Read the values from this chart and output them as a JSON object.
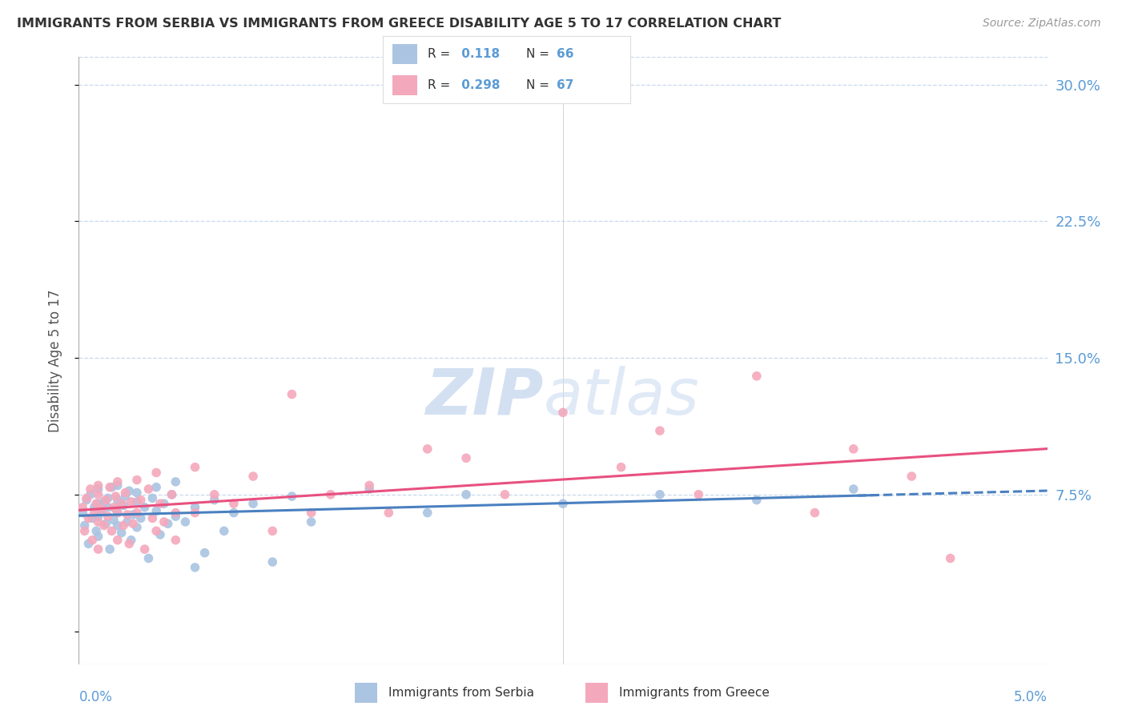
{
  "title": "IMMIGRANTS FROM SERBIA VS IMMIGRANTS FROM GREECE DISABILITY AGE 5 TO 17 CORRELATION CHART",
  "source": "Source: ZipAtlas.com",
  "ylabel": "Disability Age 5 to 17",
  "yticks": [
    0.0,
    0.075,
    0.15,
    0.225,
    0.3
  ],
  "ytick_labels": [
    "",
    "7.5%",
    "15.0%",
    "22.5%",
    "30.0%"
  ],
  "xlim": [
    0.0,
    0.05
  ],
  "ylim": [
    -0.018,
    0.315
  ],
  "serbia_R": 0.118,
  "serbia_N": 66,
  "greece_R": 0.298,
  "greece_N": 67,
  "serbia_color": "#aac4e2",
  "greece_color": "#f4a8bc",
  "serbia_line_color": "#4a80c0",
  "greece_line_color": "#e85080",
  "axis_label_color": "#5b9bd5",
  "watermark_color": "#d0dff0",
  "background_color": "#ffffff",
  "serbia_x": [
    0.0002,
    0.0003,
    0.0004,
    0.0005,
    0.0006,
    0.0007,
    0.0008,
    0.0009,
    0.001,
    0.001,
    0.001,
    0.001,
    0.0012,
    0.0013,
    0.0014,
    0.0015,
    0.0015,
    0.0016,
    0.0017,
    0.0018,
    0.0019,
    0.002,
    0.002,
    0.002,
    0.002,
    0.0022,
    0.0023,
    0.0024,
    0.0025,
    0.0026,
    0.0027,
    0.0028,
    0.003,
    0.003,
    0.003,
    0.0032,
    0.0034,
    0.0036,
    0.0038,
    0.004,
    0.004,
    0.0042,
    0.0044,
    0.0046,
    0.0048,
    0.005,
    0.005,
    0.0055,
    0.006,
    0.006,
    0.0065,
    0.007,
    0.0075,
    0.008,
    0.009,
    0.01,
    0.011,
    0.012,
    0.015,
    0.018,
    0.02,
    0.025,
    0.03,
    0.035,
    0.04
  ],
  "serbia_y": [
    0.065,
    0.058,
    0.072,
    0.048,
    0.075,
    0.062,
    0.068,
    0.055,
    0.07,
    0.063,
    0.078,
    0.052,
    0.066,
    0.071,
    0.059,
    0.068,
    0.073,
    0.045,
    0.079,
    0.061,
    0.067,
    0.072,
    0.058,
    0.065,
    0.08,
    0.054,
    0.069,
    0.074,
    0.06,
    0.077,
    0.05,
    0.064,
    0.071,
    0.057,
    0.076,
    0.062,
    0.068,
    0.04,
    0.073,
    0.066,
    0.079,
    0.053,
    0.07,
    0.059,
    0.075,
    0.063,
    0.082,
    0.06,
    0.035,
    0.068,
    0.043,
    0.072,
    0.055,
    0.065,
    0.07,
    0.038,
    0.074,
    0.06,
    0.078,
    0.065,
    0.075,
    0.07,
    0.075,
    0.072,
    0.078
  ],
  "greece_x": [
    0.0002,
    0.0003,
    0.0004,
    0.0005,
    0.0006,
    0.0007,
    0.0008,
    0.0009,
    0.001,
    0.001,
    0.001,
    0.001,
    0.0012,
    0.0013,
    0.0014,
    0.0015,
    0.0016,
    0.0017,
    0.0018,
    0.0019,
    0.002,
    0.002,
    0.002,
    0.0022,
    0.0023,
    0.0024,
    0.0025,
    0.0026,
    0.0027,
    0.0028,
    0.003,
    0.003,
    0.0032,
    0.0034,
    0.0036,
    0.0038,
    0.004,
    0.004,
    0.0042,
    0.0044,
    0.0048,
    0.005,
    0.005,
    0.006,
    0.006,
    0.007,
    0.008,
    0.009,
    0.01,
    0.011,
    0.012,
    0.013,
    0.015,
    0.016,
    0.018,
    0.02,
    0.022,
    0.025,
    0.028,
    0.03,
    0.032,
    0.035,
    0.038,
    0.04,
    0.043,
    0.045
  ],
  "greece_y": [
    0.068,
    0.055,
    0.073,
    0.062,
    0.078,
    0.05,
    0.065,
    0.07,
    0.06,
    0.075,
    0.045,
    0.08,
    0.067,
    0.058,
    0.072,
    0.063,
    0.079,
    0.055,
    0.068,
    0.074,
    0.05,
    0.082,
    0.065,
    0.07,
    0.058,
    0.076,
    0.064,
    0.048,
    0.071,
    0.059,
    0.083,
    0.065,
    0.072,
    0.045,
    0.078,
    0.062,
    0.055,
    0.087,
    0.07,
    0.06,
    0.075,
    0.065,
    0.05,
    0.09,
    0.065,
    0.075,
    0.07,
    0.085,
    0.055,
    0.13,
    0.065,
    0.075,
    0.08,
    0.065,
    0.1,
    0.095,
    0.075,
    0.12,
    0.09,
    0.11,
    0.075,
    0.14,
    0.065,
    0.1,
    0.085,
    0.04
  ]
}
